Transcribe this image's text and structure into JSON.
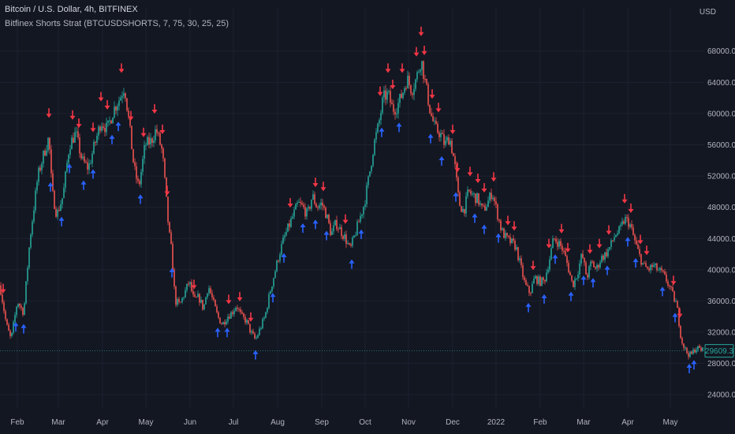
{
  "header": {
    "title": "Bitcoin / U.S. Dollar, 4h, BITFINEX",
    "indicator": "Bitfinex Shorts Strat (BTCUSDSHORTS, 7, 75, 30, 25, 25)",
    "currency": "USD"
  },
  "colors": {
    "background": "#131722",
    "grid": "#1e2230",
    "up": "#26a69a",
    "down": "#ef5350",
    "arrow_up": "#2962ff",
    "arrow_down": "#f23645",
    "last_price": "#26a69a"
  },
  "chart_data": {
    "type": "candlestick",
    "symbol": "BTCUSD",
    "timeframe": "4h",
    "x_labels": [
      "Feb",
      "Mar",
      "Apr",
      "May",
      "Jun",
      "Jul",
      "Aug",
      "Sep",
      "Oct",
      "Nov",
      "Dec",
      "2022",
      "Feb",
      "Mar",
      "Apr",
      "May"
    ],
    "y_ticks": [
      "68000.0",
      "64000.0",
      "60000.0",
      "56000.0",
      "52000.0",
      "48000.0",
      "44000.0",
      "40000.0",
      "36000.0",
      "32000.0",
      "28000.0",
      "24000.0"
    ],
    "y_tick_values": [
      68000,
      64000,
      60000,
      56000,
      52000,
      48000,
      44000,
      40000,
      36000,
      32000,
      28000,
      24000
    ],
    "ylim": [
      22200,
      70500
    ],
    "last_price": "29609.3",
    "last_price_value": 29609.3,
    "price_path": [
      [
        0,
        38000
      ],
      [
        8,
        33000
      ],
      [
        14,
        31000
      ],
      [
        22,
        36000
      ],
      [
        30,
        34500
      ],
      [
        38,
        44000
      ],
      [
        48,
        52000
      ],
      [
        56,
        55000
      ],
      [
        62,
        57000
      ],
      [
        66,
        50000
      ],
      [
        72,
        47000
      ],
      [
        80,
        49500
      ],
      [
        88,
        56000
      ],
      [
        96,
        57500
      ],
      [
        104,
        54000
      ],
      [
        112,
        53000
      ],
      [
        120,
        56000
      ],
      [
        128,
        59000
      ],
      [
        136,
        58000
      ],
      [
        144,
        60500
      ],
      [
        152,
        62000
      ],
      [
        158,
        63500
      ],
      [
        164,
        58500
      ],
      [
        170,
        53000
      ],
      [
        176,
        50500
      ],
      [
        184,
        56000
      ],
      [
        192,
        56500
      ],
      [
        198,
        58000
      ],
      [
        206,
        55000
      ],
      [
        210,
        50000
      ],
      [
        214,
        45000
      ],
      [
        218,
        42000
      ],
      [
        222,
        36000
      ],
      [
        228,
        35500
      ],
      [
        234,
        37000
      ],
      [
        240,
        38500
      ],
      [
        246,
        36000
      ],
      [
        252,
        36500
      ],
      [
        258,
        35000
      ],
      [
        264,
        38000
      ],
      [
        270,
        36000
      ],
      [
        276,
        34000
      ],
      [
        282,
        33000
      ],
      [
        288,
        34000
      ],
      [
        294,
        34500
      ],
      [
        300,
        35500
      ],
      [
        306,
        34000
      ],
      [
        312,
        33500
      ],
      [
        318,
        32000
      ],
      [
        324,
        31000
      ],
      [
        330,
        32500
      ],
      [
        336,
        34000
      ],
      [
        342,
        37000
      ],
      [
        348,
        39500
      ],
      [
        354,
        42000
      ],
      [
        360,
        44000
      ],
      [
        366,
        45500
      ],
      [
        372,
        47000
      ],
      [
        378,
        48500
      ],
      [
        384,
        48000
      ],
      [
        390,
        47000
      ],
      [
        396,
        49500
      ],
      [
        402,
        48000
      ],
      [
        408,
        48500
      ],
      [
        414,
        47000
      ],
      [
        420,
        44500
      ],
      [
        426,
        46000
      ],
      [
        432,
        45000
      ],
      [
        438,
        44000
      ],
      [
        444,
        42500
      ],
      [
        450,
        44500
      ],
      [
        456,
        46500
      ],
      [
        462,
        48500
      ],
      [
        468,
        52000
      ],
      [
        474,
        56000
      ],
      [
        480,
        58500
      ],
      [
        486,
        62000
      ],
      [
        492,
        62500
      ],
      [
        498,
        60500
      ],
      [
        504,
        61000
      ],
      [
        510,
        62500
      ],
      [
        516,
        64500
      ],
      [
        522,
        63000
      ],
      [
        528,
        64500
      ],
      [
        534,
        67000
      ],
      [
        540,
        63500
      ],
      [
        546,
        60000
      ],
      [
        552,
        58000
      ],
      [
        558,
        57500
      ],
      [
        564,
        56000
      ],
      [
        570,
        57000
      ],
      [
        576,
        54000
      ],
      [
        582,
        48500
      ],
      [
        588,
        47500
      ],
      [
        594,
        50000
      ],
      [
        600,
        49500
      ],
      [
        606,
        49000
      ],
      [
        612,
        47500
      ],
      [
        618,
        48500
      ],
      [
        624,
        50000
      ],
      [
        630,
        47500
      ],
      [
        636,
        45000
      ],
      [
        642,
        44000
      ],
      [
        648,
        43500
      ],
      [
        654,
        43000
      ],
      [
        660,
        40500
      ],
      [
        666,
        38000
      ],
      [
        672,
        37000
      ],
      [
        678,
        39000
      ],
      [
        684,
        38500
      ],
      [
        690,
        38500
      ],
      [
        696,
        41000
      ],
      [
        702,
        44000
      ],
      [
        708,
        43500
      ],
      [
        714,
        42500
      ],
      [
        720,
        40500
      ],
      [
        726,
        38000
      ],
      [
        732,
        39500
      ],
      [
        738,
        42000
      ],
      [
        744,
        39000
      ],
      [
        750,
        41000
      ],
      [
        756,
        40000
      ],
      [
        762,
        41500
      ],
      [
        768,
        42000
      ],
      [
        774,
        43000
      ],
      [
        780,
        44500
      ],
      [
        786,
        45000
      ],
      [
        792,
        46500
      ],
      [
        798,
        46000
      ],
      [
        804,
        44000
      ],
      [
        810,
        42000
      ],
      [
        816,
        40500
      ],
      [
        822,
        40000
      ],
      [
        828,
        40500
      ],
      [
        834,
        40000
      ],
      [
        840,
        39500
      ],
      [
        846,
        38500
      ],
      [
        852,
        37000
      ],
      [
        858,
        35500
      ],
      [
        864,
        31000
      ],
      [
        870,
        29500
      ],
      [
        876,
        29000
      ],
      [
        882,
        30000
      ],
      [
        888,
        29800
      ],
      [
        893,
        29609
      ]
    ],
    "arrows_down_x": [
      4,
      62,
      92,
      100,
      118,
      128,
      136,
      154,
      166,
      182,
      196,
      206,
      212,
      246,
      290,
      304,
      318,
      368,
      400,
      410,
      438,
      482,
      492,
      498,
      510,
      528,
      534,
      538,
      548,
      556,
      574,
      580,
      596,
      606,
      614,
      626,
      644,
      652,
      676,
      696,
      712,
      720,
      748,
      760,
      772,
      792,
      800,
      812,
      820,
      854,
      862
    ],
    "arrows_up_x": [
      20,
      30,
      64,
      78,
      88,
      106,
      118,
      142,
      150,
      178,
      218,
      276,
      288,
      324,
      346,
      360,
      384,
      400,
      414,
      446,
      458,
      484,
      506,
      546,
      560,
      578,
      602,
      614,
      632,
      670,
      690,
      704,
      724,
      740,
      752,
      770,
      796,
      806,
      840,
      856,
      874,
      880
    ]
  }
}
